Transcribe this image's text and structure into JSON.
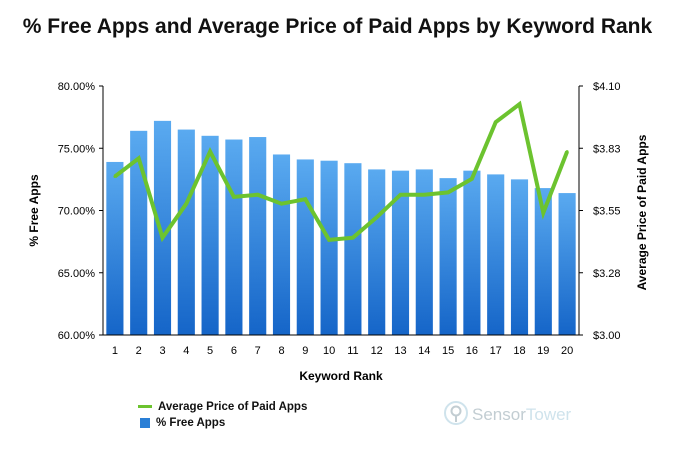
{
  "title": "% Free Apps and Average Price of Paid Apps by Keyword Rank",
  "brand": {
    "name_part1": "Sensor",
    "name_part2": "Tower"
  },
  "colors": {
    "bar_top": "#5aaaf0",
    "bar_bottom": "#1565c8",
    "line": "#6cc32f",
    "axis": "#000000"
  },
  "chart_data": {
    "type": "bar",
    "categories": [
      "1",
      "2",
      "3",
      "4",
      "5",
      "6",
      "7",
      "8",
      "9",
      "10",
      "11",
      "12",
      "13",
      "14",
      "15",
      "16",
      "17",
      "18",
      "19",
      "20"
    ],
    "xlabel": "Keyword Rank",
    "ylabel": "% Free Apps",
    "y2label": "Average Price of Paid Apps",
    "ylim": [
      60,
      80
    ],
    "y2lim": [
      3.0,
      4.1
    ],
    "yticks": [
      "60.00%",
      "65.00%",
      "70.00%",
      "75.00%",
      "80.00%"
    ],
    "y2ticks": [
      "$3.00",
      "$3.28",
      "$3.55",
      "$3.83",
      "$4.10"
    ],
    "grid": false,
    "legend_position": "bottom-left",
    "series": [
      {
        "name": "% Free Apps",
        "type": "bar",
        "values": [
          73.9,
          76.4,
          77.2,
          76.5,
          76.0,
          75.7,
          75.9,
          74.5,
          74.1,
          74.0,
          73.8,
          73.3,
          73.2,
          73.3,
          72.6,
          73.2,
          72.9,
          72.5,
          71.8,
          71.4
        ]
      },
      {
        "name": "Average Price of Paid Apps",
        "type": "line",
        "axis": "right",
        "values": [
          3.7,
          3.78,
          3.43,
          3.58,
          3.81,
          3.61,
          3.62,
          3.58,
          3.6,
          3.42,
          3.43,
          3.52,
          3.62,
          3.62,
          3.63,
          3.69,
          3.94,
          4.02,
          3.54,
          3.81
        ]
      }
    ]
  }
}
